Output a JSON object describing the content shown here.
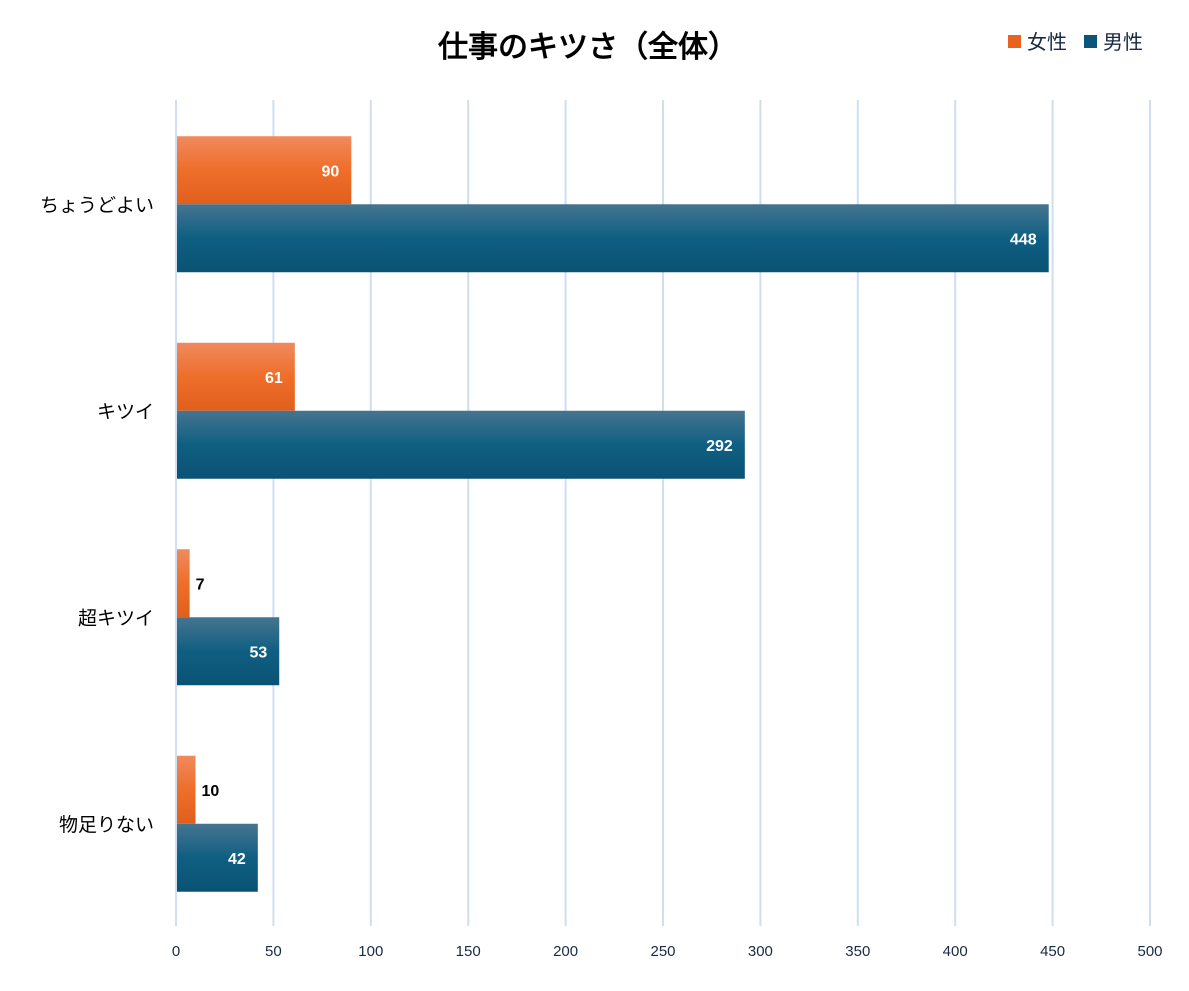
{
  "chart_data": {
    "type": "bar",
    "orientation": "horizontal",
    "title": "仕事のキツさ（全体）",
    "categories": [
      "ちょうどよい",
      "キツイ",
      "超キツイ",
      "物足りない"
    ],
    "series": [
      {
        "name": "女性",
        "color": "#e8631f",
        "values": [
          90,
          61,
          7,
          10
        ]
      },
      {
        "name": "男性",
        "color": "#0b5578",
        "values": [
          448,
          292,
          53,
          42
        ]
      }
    ],
    "xlim": [
      0,
      500
    ],
    "xticks": [
      0,
      50,
      100,
      150,
      200,
      250,
      300,
      350,
      400,
      450,
      500
    ],
    "grid": true,
    "gridColor": "#cfdff0",
    "legend": "top-right",
    "xlabel": "",
    "ylabel": ""
  }
}
